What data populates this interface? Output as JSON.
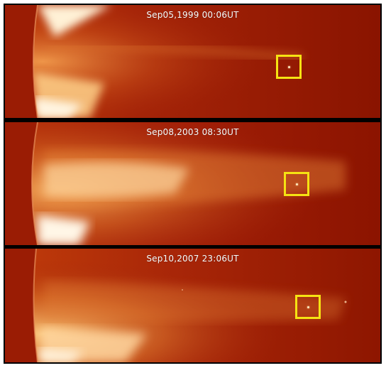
{
  "figure": {
    "panels": [
      {
        "timestamp": "Sep05,1999 00:06UT"
      },
      {
        "timestamp": "Sep08,2003 08:30UT"
      },
      {
        "timestamp": "Sep10,2007 23:06UT"
      }
    ],
    "colors": {
      "background": "#8f1600",
      "corona_bright": "#fff4dc",
      "corona_mid": "#f09a3c",
      "marker": "#f5e313"
    }
  }
}
